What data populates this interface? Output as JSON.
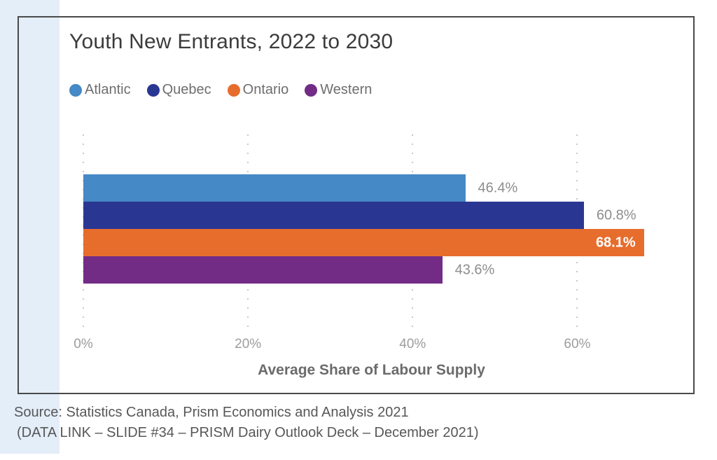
{
  "page": {
    "background_color": "#ffffff",
    "accent_stripe_color": "#e3eef9",
    "figure_border_color": "#4a4a4a"
  },
  "chart_data": {
    "type": "bar",
    "orientation": "horizontal",
    "title": "Youth New Entrants, 2022 to 2030",
    "categories": [
      "Atlantic",
      "Quebec",
      "Ontario",
      "Western"
    ],
    "values": [
      46.4,
      60.8,
      68.1,
      43.6
    ],
    "value_labels": [
      "46.4%",
      "60.8%",
      "68.1%",
      "43.6%"
    ],
    "label_inside": [
      false,
      false,
      true,
      false
    ],
    "colors": [
      "#4589c6",
      "#2a3792",
      "#e76d2d",
      "#722c86"
    ],
    "xlabel": "Average Share of Labour Supply",
    "xlim": [
      0,
      70
    ],
    "xticks": [
      0,
      20,
      40,
      60
    ],
    "xtick_labels": [
      "0%",
      "20%",
      "40%",
      "60%"
    ],
    "grid": "vertical-dotted",
    "gridline_color": "#c9c9c9",
    "legend_position": "top-left",
    "legend": [
      {
        "label": "Atlantic",
        "color": "#4589c6"
      },
      {
        "label": "Quebec",
        "color": "#2a3792"
      },
      {
        "label": "Ontario",
        "color": "#e76d2d"
      },
      {
        "label": "Western",
        "color": "#722c86"
      }
    ]
  },
  "source": {
    "line1": "Source: Statistics Canada, Prism Economics and Analysis 2021",
    "line2": "(DATA LINK – SLIDE #34 – PRISM Dairy Outlook Deck – December 2021)"
  }
}
